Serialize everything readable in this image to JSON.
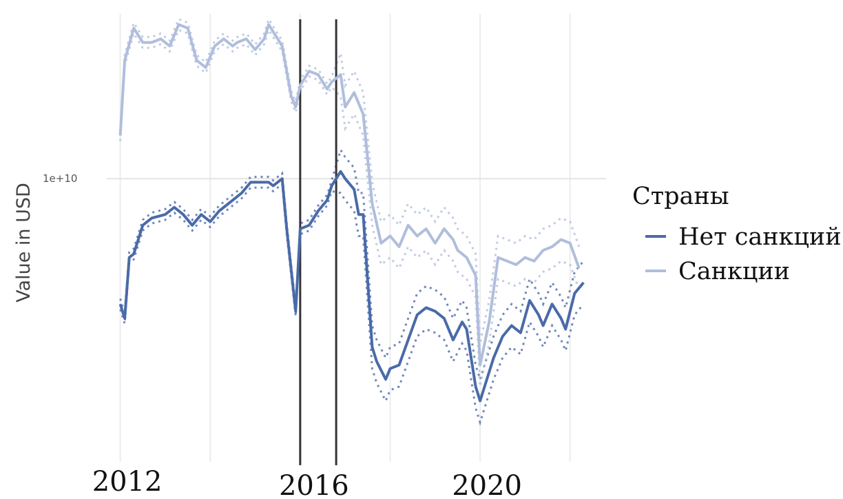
{
  "chart_data": {
    "type": "line",
    "title": "",
    "xlabel": "",
    "ylabel": "Value in USD",
    "y_scale": "log",
    "y_tick_labels": [
      {
        "value": 10000000000,
        "label": "1e+10"
      }
    ],
    "x_tick_labels": [
      {
        "value": 2012,
        "label": "2012"
      },
      {
        "value": 2016,
        "label": "2016"
      },
      {
        "value": 2020,
        "label": "2020"
      }
    ],
    "xlim": [
      2011.7,
      2022.8
    ],
    "ylim_log10": [
      9.21,
      10.46
    ],
    "grid": true,
    "vlines": [
      2016.0,
      2016.8
    ],
    "legend": {
      "title": "Страны",
      "position": "right"
    },
    "series": [
      {
        "name": "Нет санкций",
        "color": "#4a6aa8",
        "x": [
          2012.0,
          2012.1,
          2012.2,
          2012.3,
          2012.5,
          2012.7,
          2013.0,
          2013.2,
          2013.4,
          2013.6,
          2013.8,
          2014.0,
          2014.2,
          2014.5,
          2014.7,
          2014.9,
          2015.1,
          2015.3,
          2015.4,
          2015.6,
          2015.7,
          2015.9,
          2016.0,
          2016.2,
          2016.4,
          2016.6,
          2016.7,
          2016.9,
          2017.0,
          2017.2,
          2017.3,
          2017.4,
          2017.6,
          2017.7,
          2017.9,
          2018.0,
          2018.2,
          2018.4,
          2018.6,
          2018.8,
          2019.0,
          2019.2,
          2019.4,
          2019.6,
          2019.7,
          2019.9,
          2020.0,
          2020.1,
          2020.3,
          2020.5,
          2020.7,
          2020.9,
          2021.1,
          2021.3,
          2021.4,
          2021.6,
          2021.8,
          2021.9,
          2022.1,
          2022.3
        ],
        "values": [
          9.65,
          9.61,
          9.78,
          9.79,
          9.87,
          9.89,
          9.9,
          9.92,
          9.9,
          9.87,
          9.9,
          9.88,
          9.91,
          9.94,
          9.96,
          9.99,
          9.99,
          9.99,
          9.98,
          10.0,
          9.86,
          9.63,
          9.86,
          9.87,
          9.91,
          9.94,
          9.98,
          10.02,
          10.0,
          9.97,
          9.9,
          9.9,
          9.53,
          9.49,
          9.44,
          9.47,
          9.48,
          9.55,
          9.62,
          9.64,
          9.63,
          9.61,
          9.55,
          9.6,
          9.58,
          9.42,
          9.38,
          9.42,
          9.5,
          9.56,
          9.59,
          9.57,
          9.66,
          9.62,
          9.59,
          9.65,
          9.61,
          9.58,
          9.68,
          9.71
        ]
      },
      {
        "name": "Санкции",
        "color": "#b0bedc",
        "x": [
          2012.0,
          2012.1,
          2012.3,
          2012.5,
          2012.7,
          2012.9,
          2013.1,
          2013.3,
          2013.5,
          2013.7,
          2013.9,
          2014.1,
          2014.3,
          2014.5,
          2014.6,
          2014.8,
          2015.0,
          2015.2,
          2015.3,
          2015.6,
          2015.8,
          2015.9,
          2016.0,
          2016.2,
          2016.4,
          2016.6,
          2016.7,
          2016.9,
          2017.0,
          2017.2,
          2017.4,
          2017.6,
          2017.8,
          2018.0,
          2018.2,
          2018.4,
          2018.6,
          2018.8,
          2019.0,
          2019.2,
          2019.4,
          2019.5,
          2019.7,
          2019.9,
          2020.0,
          2020.2,
          2020.4,
          2020.6,
          2020.8,
          2021.0,
          2021.2,
          2021.4,
          2021.6,
          2021.8,
          2022.0,
          2022.2
        ],
        "values": [
          10.12,
          10.33,
          10.42,
          10.38,
          10.38,
          10.39,
          10.37,
          10.43,
          10.42,
          10.33,
          10.31,
          10.37,
          10.39,
          10.37,
          10.38,
          10.39,
          10.36,
          10.39,
          10.43,
          10.37,
          10.23,
          10.2,
          10.26,
          10.3,
          10.29,
          10.25,
          10.27,
          10.29,
          10.2,
          10.24,
          10.18,
          9.93,
          9.82,
          9.84,
          9.81,
          9.87,
          9.84,
          9.86,
          9.82,
          9.86,
          9.83,
          9.8,
          9.78,
          9.73,
          9.48,
          9.6,
          9.78,
          9.77,
          9.76,
          9.78,
          9.77,
          9.8,
          9.81,
          9.83,
          9.82,
          9.75
        ]
      }
    ]
  }
}
